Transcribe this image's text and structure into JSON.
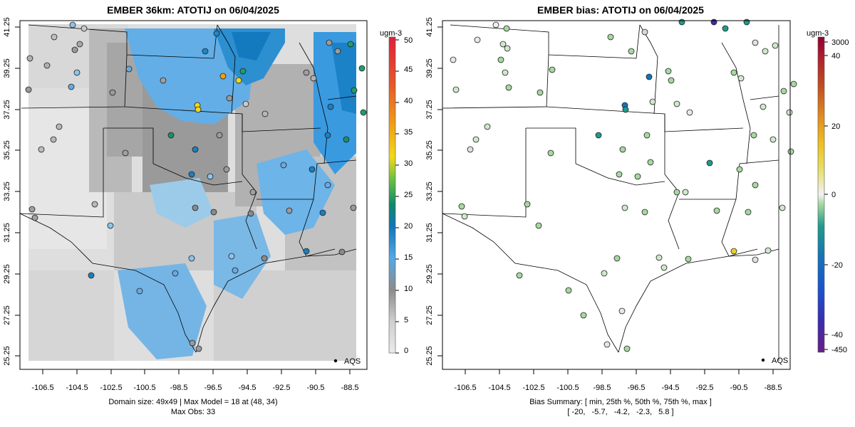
{
  "panels": [
    {
      "id": "model",
      "title": "EMBER 36km: ATOTIJ on 06/04/2025",
      "unit": "ugm-3",
      "legend_ticks": [
        0,
        5,
        10,
        15,
        20,
        25,
        30,
        35,
        40,
        45,
        50
      ],
      "obs_label": "AQS",
      "summary_lines": [
        "Domain size: 49x49 | Max Model = 18 at (48, 34)",
        "Max Obs: 33"
      ]
    },
    {
      "id": "bias",
      "title": "EMBER bias: ATOTIJ on 06/04/2025",
      "unit": "ugm-3",
      "legend_ticks": [
        3000,
        40,
        20,
        0,
        -20,
        -40,
        -450
      ],
      "obs_label": "AQS",
      "summary_lines": [
        "Bias Summary: [ min, 25th %, 50th %, 75th %, max ]",
        "[ -20,   -5.7,   -4.2,   -2.3,   5.8 ]"
      ]
    }
  ],
  "x_ticks": [
    "-106.5",
    "-104.5",
    "-102.5",
    "-100.5",
    "-98.5",
    "-96.5",
    "-94.5",
    "-92.5",
    "-90.5",
    "-88.5"
  ],
  "y_ticks": [
    "41.25",
    "39.25",
    "37.25",
    "35.25",
    "33.25",
    "31.25",
    "29.25",
    "27.25",
    "25.25"
  ],
  "colors": {
    "model_scale": [
      "#e8e8e8",
      "#bdbdbd",
      "#8f8f8f",
      "#5aa9e6",
      "#1a7fc0",
      "#0e8a6a",
      "#5fbf3a",
      "#f1d21a",
      "#f09a14",
      "#e45a2a",
      "#e0203a"
    ],
    "bias_scale": [
      "#6a1f86",
      "#3a2cb0",
      "#1a52d0",
      "#1573b8",
      "#1f9b8a",
      "#9fd59b",
      "#f2f2f2",
      "#f0d020",
      "#e09020",
      "#c85020",
      "#b02030",
      "#900030"
    ]
  }
}
